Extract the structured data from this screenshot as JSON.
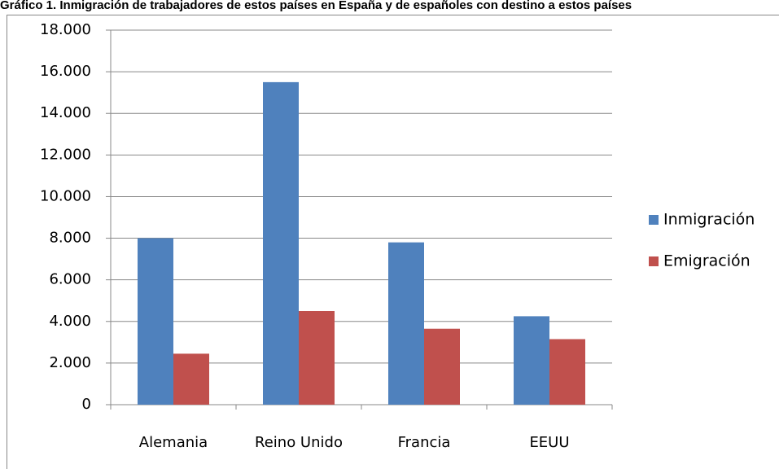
{
  "chart_data": {
    "type": "bar",
    "title": "Gráfico 1. Inmigración de trabajadores de estos países en España y de españoles con destino a estos países",
    "categories": [
      "Alemania",
      "Reino Unido",
      "Francia",
      "EEUU"
    ],
    "series": [
      {
        "name": "Inmigración",
        "color": "#4f81bd",
        "values": [
          8000,
          15500,
          7800,
          4250
        ]
      },
      {
        "name": "Emigración",
        "color": "#c0504d",
        "values": [
          2450,
          4500,
          3650,
          3150
        ]
      }
    ],
    "ylim": [
      0,
      18000
    ],
    "yticks": [
      0,
      {
        "value": 2000,
        "label": "2.000"
      },
      {
        "value": 4000,
        "label": "4.000"
      },
      {
        "value": 6000,
        "label": "6.000"
      },
      {
        "value": 8000,
        "label": "8.000"
      },
      {
        "value": 10000,
        "label": "10.000"
      },
      {
        "value": 12000,
        "label": "12.000"
      },
      {
        "value": 14000,
        "label": "14.000"
      },
      {
        "value": 16000,
        "label": "16.000"
      },
      {
        "value": 18000,
        "label": "18.000"
      }
    ],
    "grid": true,
    "legend": "right"
  }
}
